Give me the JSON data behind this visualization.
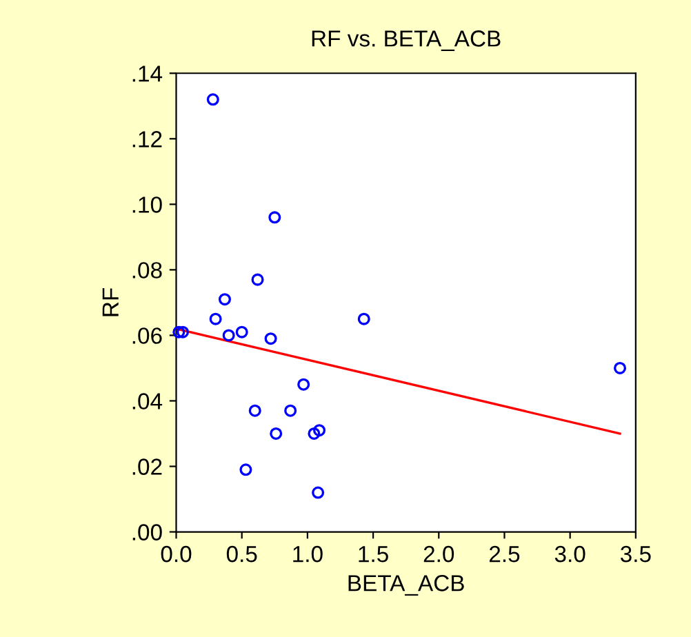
{
  "chart_data": {
    "type": "scatter",
    "title": "RF vs. BETA_ACB",
    "xlabel": "BETA_ACB",
    "ylabel": "RF",
    "xlim": [
      0,
      3.5
    ],
    "ylim": [
      0,
      0.14
    ],
    "xticks": [
      {
        "value": 0,
        "label": "0.0"
      },
      {
        "value": 0.5,
        "label": "0.5"
      },
      {
        "value": 1,
        "label": "1.0"
      },
      {
        "value": 1.5,
        "label": "1.5"
      },
      {
        "value": 2,
        "label": "2.0"
      },
      {
        "value": 2.5,
        "label": "2.5"
      },
      {
        "value": 3,
        "label": "3.0"
      },
      {
        "value": 3.5,
        "label": "3.5"
      }
    ],
    "yticks": [
      {
        "value": 0,
        "label": ".00"
      },
      {
        "value": 0.02,
        "label": ".02"
      },
      {
        "value": 0.04,
        "label": ".04"
      },
      {
        "value": 0.06,
        "label": ".06"
      },
      {
        "value": 0.08,
        "label": ".08"
      },
      {
        "value": 0.1,
        "label": ".10"
      },
      {
        "value": 0.12,
        "label": ".12"
      },
      {
        "value": 0.14,
        "label": ".14"
      }
    ],
    "grid": false,
    "series": [
      {
        "marker": "circle",
        "color": "#0000ff",
        "x": [
          0.02,
          0.05,
          0.28,
          0.3,
          0.37,
          0.4,
          0.5,
          0.6,
          0.62,
          0.53,
          0.72,
          0.75,
          0.76,
          0.87,
          0.97,
          1.05,
          1.09,
          1.08,
          1.43,
          3.38
        ],
        "values": [
          0.061,
          0.061,
          0.132,
          0.065,
          0.071,
          0.06,
          0.061,
          0.037,
          0.077,
          0.019,
          0.059,
          0.096,
          0.03,
          0.037,
          0.045,
          0.03,
          0.031,
          0.012,
          0.065,
          0.05
        ]
      },
      {
        "type": "line",
        "marker": "none",
        "color": "#ff0000",
        "x": [
          0,
          3.38
        ],
        "values": [
          0.062,
          0.03
        ]
      }
    ]
  }
}
